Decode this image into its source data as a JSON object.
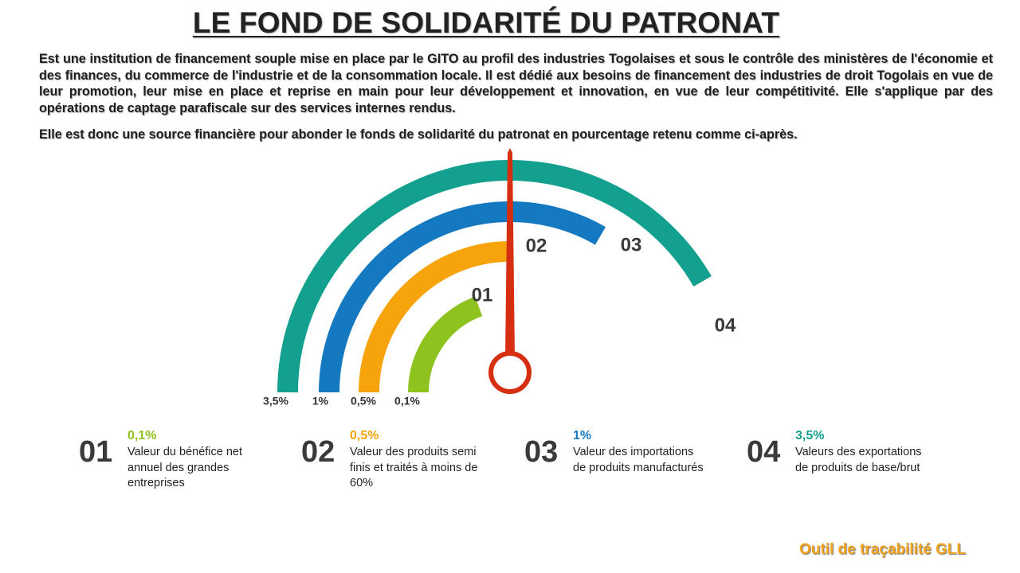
{
  "title": "LE FOND DE SOLIDARITÉ DU PATRONAT",
  "intro": "Est une institution de financement souple mise en place par le GITO au profil des industries Togolaises et sous le contrôle des ministères de l'économie et des finances, du commerce de l'industrie et de la consommation locale. Il est dédié aux besoins de financement  des industries de droit Togolais en vue de leur promotion, leur mise en place et reprise en main  pour leur développement et innovation, en vue de leur compétitivité. Elle s'applique par des opérations de captage parafiscale sur des services internes rendus.",
  "intro2": "Elle est donc une source financière pour abonder le fonds de solidarité du patronat en pourcentage retenu comme ci-après.",
  "gauge": {
    "arcs": [
      {
        "num": "01",
        "pct": "0,1%",
        "color": "#8dc21f",
        "value": 0.1
      },
      {
        "num": "02",
        "pct": "0,5%",
        "color": "#f7a30b",
        "value": 0.5
      },
      {
        "num": "03",
        "pct": "1%",
        "color": "#1479c1",
        "value": 1
      },
      {
        "num": "04",
        "pct": "3,5%",
        "color": "#14a08e",
        "value": 3.5
      }
    ],
    "needle_color": "#d62e10"
  },
  "items": [
    {
      "num": "01",
      "pct": "0,1%",
      "desc": "Valeur du bénéfice net annuel des grandes entreprises",
      "color": "#8dc21f"
    },
    {
      "num": "02",
      "pct": "0,5%",
      "desc": "Valeur des produits semi finis et traités à moins de 60%",
      "color": "#f7a30b"
    },
    {
      "num": "03",
      "pct": "1%",
      "desc": "Valeur des importations de produits manufacturés",
      "color": "#1479c1"
    },
    {
      "num": "04",
      "pct": "3,5%",
      "desc": "Valeurs des exportations de produits de base/brut",
      "color": "#14a08e"
    }
  ],
  "footer": "Outil de traçabilité GLL"
}
